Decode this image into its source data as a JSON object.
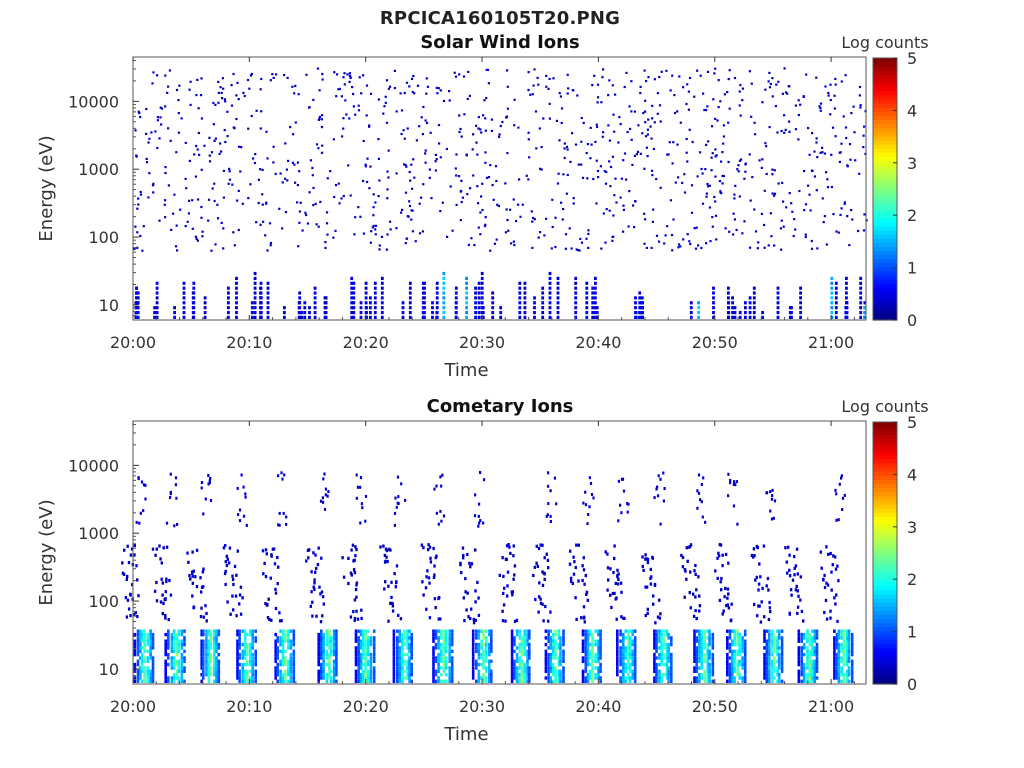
{
  "figure_title": "RPCICA160105T20.PNG",
  "chart_data": [
    {
      "type": "heatmap",
      "title": "Solar Wind Ions",
      "xlabel": "Time",
      "ylabel": "Energy (eV)",
      "x_ticks": [
        "20:00",
        "20:10",
        "20:20",
        "20:30",
        "20:40",
        "20:50",
        "21:00"
      ],
      "x_range": [
        "20:00",
        "21:03"
      ],
      "y_scale": "log",
      "y_ticks": [
        10,
        100,
        1000,
        10000
      ],
      "y_range": [
        6,
        45000
      ],
      "colorbar": {
        "label": "Log counts",
        "min": 0,
        "max": 5,
        "ticks": [
          0,
          1,
          2,
          3,
          4,
          5
        ],
        "colormap": "jet"
      },
      "description_values": {
        "background": "sparse counts ~0.1-0.5 log counts scattered 100-20000 eV",
        "low_energy_bursts_eV": [
          6,
          30
        ],
        "burst_peak_log_counts": 1.7
      }
    },
    {
      "type": "heatmap",
      "title": "Cometary Ions",
      "xlabel": "Time",
      "ylabel": "Energy (eV)",
      "x_ticks": [
        "20:00",
        "20:10",
        "20:20",
        "20:30",
        "20:40",
        "20:50",
        "21:00"
      ],
      "x_range": [
        "20:00",
        "21:03"
      ],
      "y_scale": "log",
      "y_ticks": [
        10,
        100,
        1000,
        10000
      ],
      "y_range": [
        6,
        45000
      ],
      "colorbar": {
        "label": "Log counts",
        "min": 0,
        "max": 5,
        "ticks": [
          0,
          1,
          2,
          3,
          4,
          5
        ],
        "colormap": "jet"
      },
      "burst_times_min": [
        0.5,
        3.2,
        6.2,
        9.3,
        12.6,
        16.3,
        19.5,
        22.8,
        26.2,
        29.6,
        32.9,
        35.8,
        39.0,
        42.0,
        45.1,
        48.6,
        51.4,
        54.6,
        57.6,
        60.6
      ],
      "description_values": {
        "low_energy_band_eV": [
          6,
          35
        ],
        "low_energy_peak_log_counts": 2.8,
        "mid_energy_band_eV": [
          50,
          600
        ],
        "high_energy_band_eV": [
          1200,
          7000
        ]
      }
    }
  ]
}
